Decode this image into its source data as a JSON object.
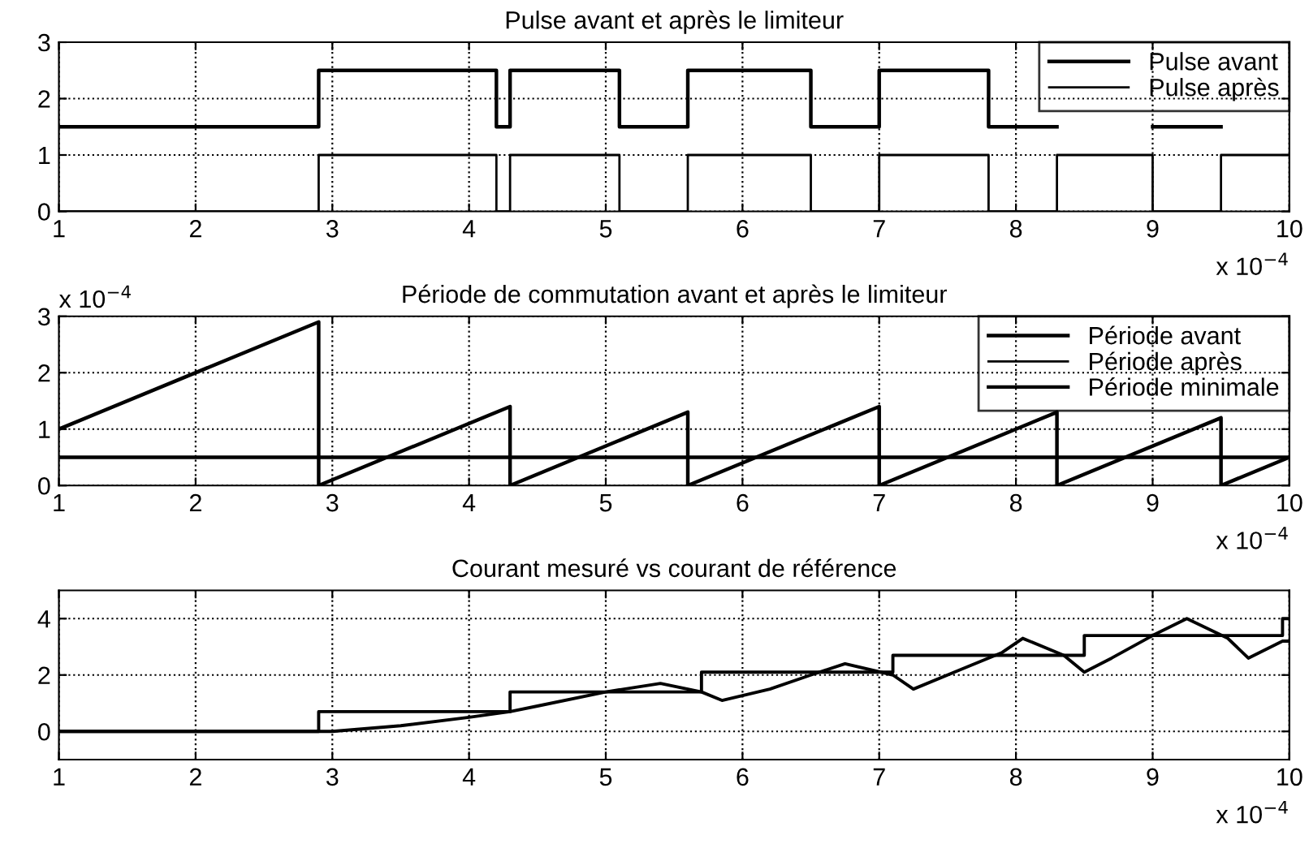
{
  "chart_data": [
    {
      "type": "step",
      "title": "Pulse avant et après le limiteur",
      "xlim": [
        1,
        10
      ],
      "xticks": [
        1,
        2,
        3,
        4,
        5,
        6,
        7,
        8,
        9,
        10
      ],
      "ylim": [
        0,
        3
      ],
      "yticks": [
        0,
        1,
        2,
        3
      ],
      "grid": true,
      "legend": "top right",
      "annotations": [
        "x 10$^{−4}$"
      ],
      "series": [
        {
          "name": "Pulse avant",
          "color": "#000000",
          "x": [
            1,
            2.9,
            4.2,
            4.3,
            5.1,
            5.6,
            6.5,
            7.0,
            7.8,
            8.3,
            9.0,
            9.5
          ],
          "values": [
            1.5,
            2.5,
            1.5,
            2.5,
            1.5,
            2.5,
            1.5,
            2.5,
            1.5,
            null,
            1.5,
            1.5
          ]
        },
        {
          "name": "Pulse après",
          "color": "#000000",
          "x": [
            1,
            2.9,
            4.2,
            4.3,
            5.1,
            5.6,
            6.5,
            7.0,
            7.8,
            8.3,
            9.0,
            9.5,
            10
          ],
          "values": [
            0,
            1,
            0,
            1,
            0,
            1,
            0,
            1,
            0,
            1,
            0,
            1,
            1
          ]
        }
      ]
    },
    {
      "type": "line",
      "title": "Période de commutation avant et après le limiteur",
      "xlim": [
        1,
        10
      ],
      "xticks": [
        1,
        2,
        3,
        4,
        5,
        6,
        7,
        8,
        9,
        10
      ],
      "ylim": [
        0,
        3
      ],
      "yticks": [
        0,
        1,
        2,
        3
      ],
      "grid": true,
      "legend": "top right",
      "annotations": [
        "x 10$^{−4}$",
        "x 10$^{−4}$"
      ],
      "series": [
        {
          "name": "Période avant",
          "color": "#000000",
          "x": [
            1,
            2.9,
            2.9,
            4.3,
            4.3,
            5.6,
            5.6,
            7.0,
            7.0,
            8.3,
            8.3,
            9.5,
            9.5,
            10
          ],
          "values": [
            1.0,
            2.9,
            0,
            1.4,
            0,
            1.3,
            0,
            1.4,
            0,
            1.3,
            0,
            1.2,
            0,
            0.5
          ]
        },
        {
          "name": "Période après",
          "color": "#000000"
        },
        {
          "name": "Période minimale",
          "color": "#000000",
          "x": [
            1,
            10
          ],
          "values": [
            0.5,
            0.5
          ]
        }
      ]
    },
    {
      "type": "step",
      "title": "Courant mesuré vs courant de référence",
      "xlim": [
        1,
        10
      ],
      "xticks": [
        1,
        2,
        3,
        4,
        5,
        6,
        7,
        8,
        9,
        10
      ],
      "ylim": [
        -1,
        5
      ],
      "yticks": [
        0,
        2,
        4
      ],
      "grid": true,
      "annotations": [
        "x 10$^{−4}$"
      ],
      "series": [
        {
          "color": "#000000",
          "x": [
            1,
            2.9,
            4.3,
            5.7,
            7.1,
            8.5,
            9.95,
            10
          ],
          "values": [
            0,
            0.7,
            1.4,
            2.1,
            2.7,
            3.4,
            4.0,
            4.0
          ]
        },
        {
          "type": "line",
          "color": "#000000",
          "x": [
            1,
            3.0,
            3.5,
            4.0,
            4.3,
            4.5,
            5.0,
            5.4,
            5.7,
            5.85,
            6.2,
            6.5,
            6.75,
            7.1,
            7.25,
            7.6,
            7.9,
            8.05,
            8.35,
            8.5,
            8.7,
            9.0,
            9.25,
            9.55,
            9.7,
            9.95,
            10
          ],
          "values": [
            0,
            0,
            0.2,
            0.5,
            0.7,
            0.9,
            1.4,
            1.7,
            1.4,
            1.1,
            1.5,
            2.0,
            2.4,
            2.0,
            1.5,
            2.2,
            2.8,
            3.3,
            2.7,
            2.1,
            2.6,
            3.4,
            4.0,
            3.3,
            2.6,
            3.2,
            3.2
          ]
        }
      ]
    }
  ]
}
